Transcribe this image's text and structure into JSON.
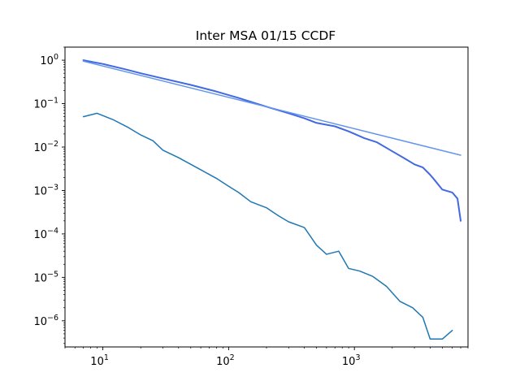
{
  "chart_data": {
    "type": "line",
    "title": "Inter MSA 01/15 CCDF",
    "xlabel": "",
    "ylabel": "",
    "xscale": "log",
    "yscale": "log",
    "xlim": [
      5,
      8000
    ],
    "ylim": [
      2.5e-07,
      2
    ],
    "grid": false,
    "x_ticks": [
      {
        "value": 10,
        "base": "10",
        "exp": "1"
      },
      {
        "value": 100,
        "base": "10",
        "exp": "2"
      },
      {
        "value": 1000,
        "base": "10",
        "exp": "3"
      }
    ],
    "y_ticks": [
      {
        "value": 1,
        "base": "10",
        "exp": "0"
      },
      {
        "value": 0.1,
        "base": "10",
        "exp": "−1"
      },
      {
        "value": 0.01,
        "base": "10",
        "exp": "−2"
      },
      {
        "value": 0.001,
        "base": "10",
        "exp": "−3"
      },
      {
        "value": 0.0001,
        "base": "10",
        "exp": "−4"
      },
      {
        "value": 1e-05,
        "base": "10",
        "exp": "−5"
      },
      {
        "value": 1e-06,
        "base": "10",
        "exp": "−6"
      }
    ],
    "series": [
      {
        "color": "#4169e1",
        "width": 2,
        "x": [
          7,
          10,
          15,
          20,
          30,
          50,
          80,
          120,
          200,
          300,
          400,
          500,
          700,
          900,
          1200,
          1500,
          2000,
          2500,
          3000,
          3500,
          4000,
          4300,
          5000,
          6000,
          6600,
          7000
        ],
        "y": [
          1.0,
          0.82,
          0.62,
          0.5,
          0.38,
          0.27,
          0.19,
          0.135,
          0.085,
          0.06,
          0.046,
          0.036,
          0.03,
          0.023,
          0.016,
          0.013,
          0.008,
          0.0055,
          0.004,
          0.0034,
          0.0023,
          0.0018,
          0.00105,
          0.0009,
          0.00065,
          0.0002
        ]
      },
      {
        "color": "#6495ed",
        "width": 1.5,
        "x": [
          7,
          7000
        ],
        "y": [
          0.95,
          0.0065
        ]
      },
      {
        "color": "#1f77b4",
        "width": 1.5,
        "x": [
          7,
          9,
          12,
          16,
          20,
          25,
          30,
          40,
          60,
          80,
          100,
          120,
          150,
          200,
          250,
          300,
          400,
          500,
          600,
          750,
          900,
          1100,
          1400,
          1800,
          2300,
          2900,
          3500,
          4000,
          5000,
          6000
        ],
        "y": [
          0.05,
          0.06,
          0.043,
          0.028,
          0.019,
          0.014,
          0.0085,
          0.0057,
          0.003,
          0.0019,
          0.00125,
          0.0009,
          0.00055,
          0.0004,
          0.00026,
          0.00019,
          0.00014,
          5.5e-05,
          3.4e-05,
          4e-05,
          1.6e-05,
          1.4e-05,
          1.05e-05,
          6.2e-06,
          2.8e-06,
          2e-06,
          1.2e-06,
          3.8e-07,
          3.8e-07,
          6e-07
        ]
      }
    ]
  }
}
